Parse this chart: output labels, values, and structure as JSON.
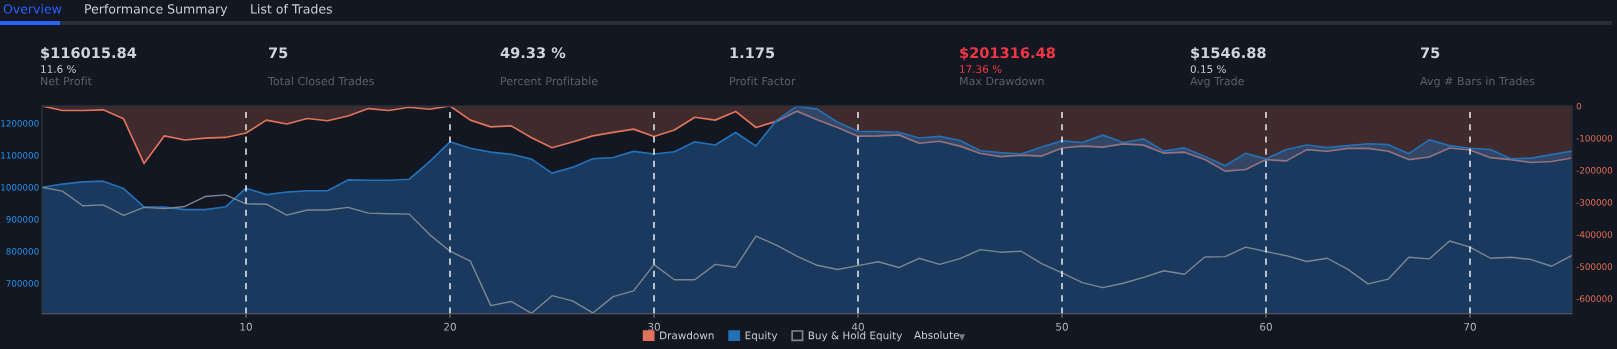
{
  "chart_data": [
    {
      "type": "other",
      "annotations": [
        "Overview",
        "Performance Summary",
        "List of Trades",
        "$116015.84",
        "11.6 %",
        "Net Profit",
        "75",
        "Total Closed Trades",
        "49.33 %",
        "Percent Profitable",
        "1.175",
        "Profit Factor",
        "$201316.48",
        "17.36 %",
        "Max Drawdown",
        "$1546.88",
        "0.15 %",
        "Avg Trade",
        "75",
        "Avg # Bars in Trades"
      ]
    },
    {
      "type": "area",
      "x": [
        0,
        1,
        2,
        3,
        4,
        5,
        6,
        7,
        8,
        9,
        10,
        11,
        12,
        13,
        14,
        15,
        16,
        17,
        18,
        19,
        20,
        21,
        22,
        23,
        24,
        25,
        26,
        27,
        28,
        29,
        30,
        31,
        32,
        33,
        34,
        35,
        36,
        37,
        38,
        39,
        40,
        41,
        42,
        43,
        44,
        45,
        46,
        47,
        48,
        49,
        50,
        51,
        52,
        53,
        54,
        55,
        56,
        57,
        58,
        59,
        60,
        61,
        62,
        63,
        64,
        65,
        66,
        67,
        68,
        69,
        70,
        71,
        72,
        73,
        74,
        75
      ],
      "xlim": [
        0,
        75
      ],
      "xticks": [
        10,
        20,
        30,
        40,
        50,
        60,
        70
      ],
      "ylim": [
        605000,
        1254000
      ],
      "yticks": [
        700000,
        800000,
        900000,
        1000000,
        1100000,
        1200000
      ],
      "y2lim": [
        -647000,
        0
      ],
      "y2ticks": [
        0,
        -100000,
        -200000,
        -300000,
        -400000,
        -500000,
        -600000
      ],
      "grid": "x",
      "legend": "bottom",
      "annotations": [
        "Absolute"
      ],
      "series": [
        {
          "name": "Drawdown",
          "type": "area",
          "axis": "y2",
          "color": "#e0735a",
          "values": [
            0,
            -14000,
            -14000,
            -12000,
            -40000,
            -179000,
            -93000,
            -106000,
            -100000,
            -98000,
            -84000,
            -44000,
            -56000,
            -39000,
            -46000,
            -31000,
            -8000,
            -14000,
            -4000,
            -10000,
            0,
            -44000,
            -65000,
            -62000,
            -99000,
            -130000,
            -112000,
            -93000,
            -82000,
            -72000,
            -95000,
            -75000,
            -35000,
            -44000,
            -17000,
            -67000,
            -48000,
            -16000,
            -43000,
            -67000,
            -94000,
            -93000,
            -90000,
            -116000,
            -110000,
            -125000,
            -148000,
            -158000,
            -153000,
            -156000,
            -131000,
            -125000,
            -128000,
            -118000,
            -122000,
            -147000,
            -144000,
            -167000,
            -203000,
            -198000,
            -167000,
            -171000,
            -136000,
            -141000,
            -132000,
            -132000,
            -141000,
            -167000,
            -159000,
            -131000,
            -137000,
            -161000,
            -167000,
            -176000,
            -173000,
            -162000
          ]
        },
        {
          "name": "Equity",
          "type": "area",
          "color": "#2470b8",
          "values": [
            1000000,
            1010000,
            1017000,
            1019000,
            996000,
            939000,
            938000,
            930000,
            930000,
            939000,
            997000,
            977000,
            985000,
            989000,
            989000,
            1023000,
            1022000,
            1022000,
            1025000,
            1080000,
            1142000,
            1122000,
            1110000,
            1103000,
            1088000,
            1044000,
            1062000,
            1089000,
            1093000,
            1112000,
            1104000,
            1111000,
            1142000,
            1132000,
            1171000,
            1129000,
            1209000,
            1253000,
            1244000,
            1203000,
            1175000,
            1174000,
            1172000,
            1154000,
            1159000,
            1146000,
            1114000,
            1108000,
            1104000,
            1126000,
            1145000,
            1140000,
            1163000,
            1140000,
            1151000,
            1113000,
            1123000,
            1096000,
            1067000,
            1106000,
            1089000,
            1118000,
            1132000,
            1124000,
            1130000,
            1136000,
            1133000,
            1105000,
            1148000,
            1130000,
            1122000,
            1118000,
            1089000,
            1091000,
            1102000,
            1113000
          ]
        },
        {
          "name": "Buy & Hold Equity",
          "type": "line",
          "color": "#7d8792",
          "values": [
            1000000,
            988000,
            942000,
            945000,
            912000,
            937000,
            933000,
            940000,
            971000,
            976000,
            948000,
            947000,
            913000,
            929000,
            929000,
            937000,
            919000,
            917000,
            916000,
            852000,
            800000,
            769000,
            630000,
            643000,
            606000,
            661000,
            645000,
            607000,
            658000,
            676000,
            758000,
            711000,
            711000,
            759000,
            750000,
            847000,
            819000,
            785000,
            756000,
            743000,
            755000,
            767000,
            749000,
            778000,
            759000,
            777000,
            805000,
            797000,
            800000,
            761000,
            732000,
            702000,
            686000,
            700000,
            718000,
            739000,
            728000,
            782000,
            783000,
            813000,
            799000,
            786000,
            768000,
            778000,
            744000,
            698000,
            713000,
            781000,
            776000,
            832000,
            813000,
            778000,
            781000,
            774000,
            753000,
            787000
          ]
        }
      ]
    }
  ]
}
